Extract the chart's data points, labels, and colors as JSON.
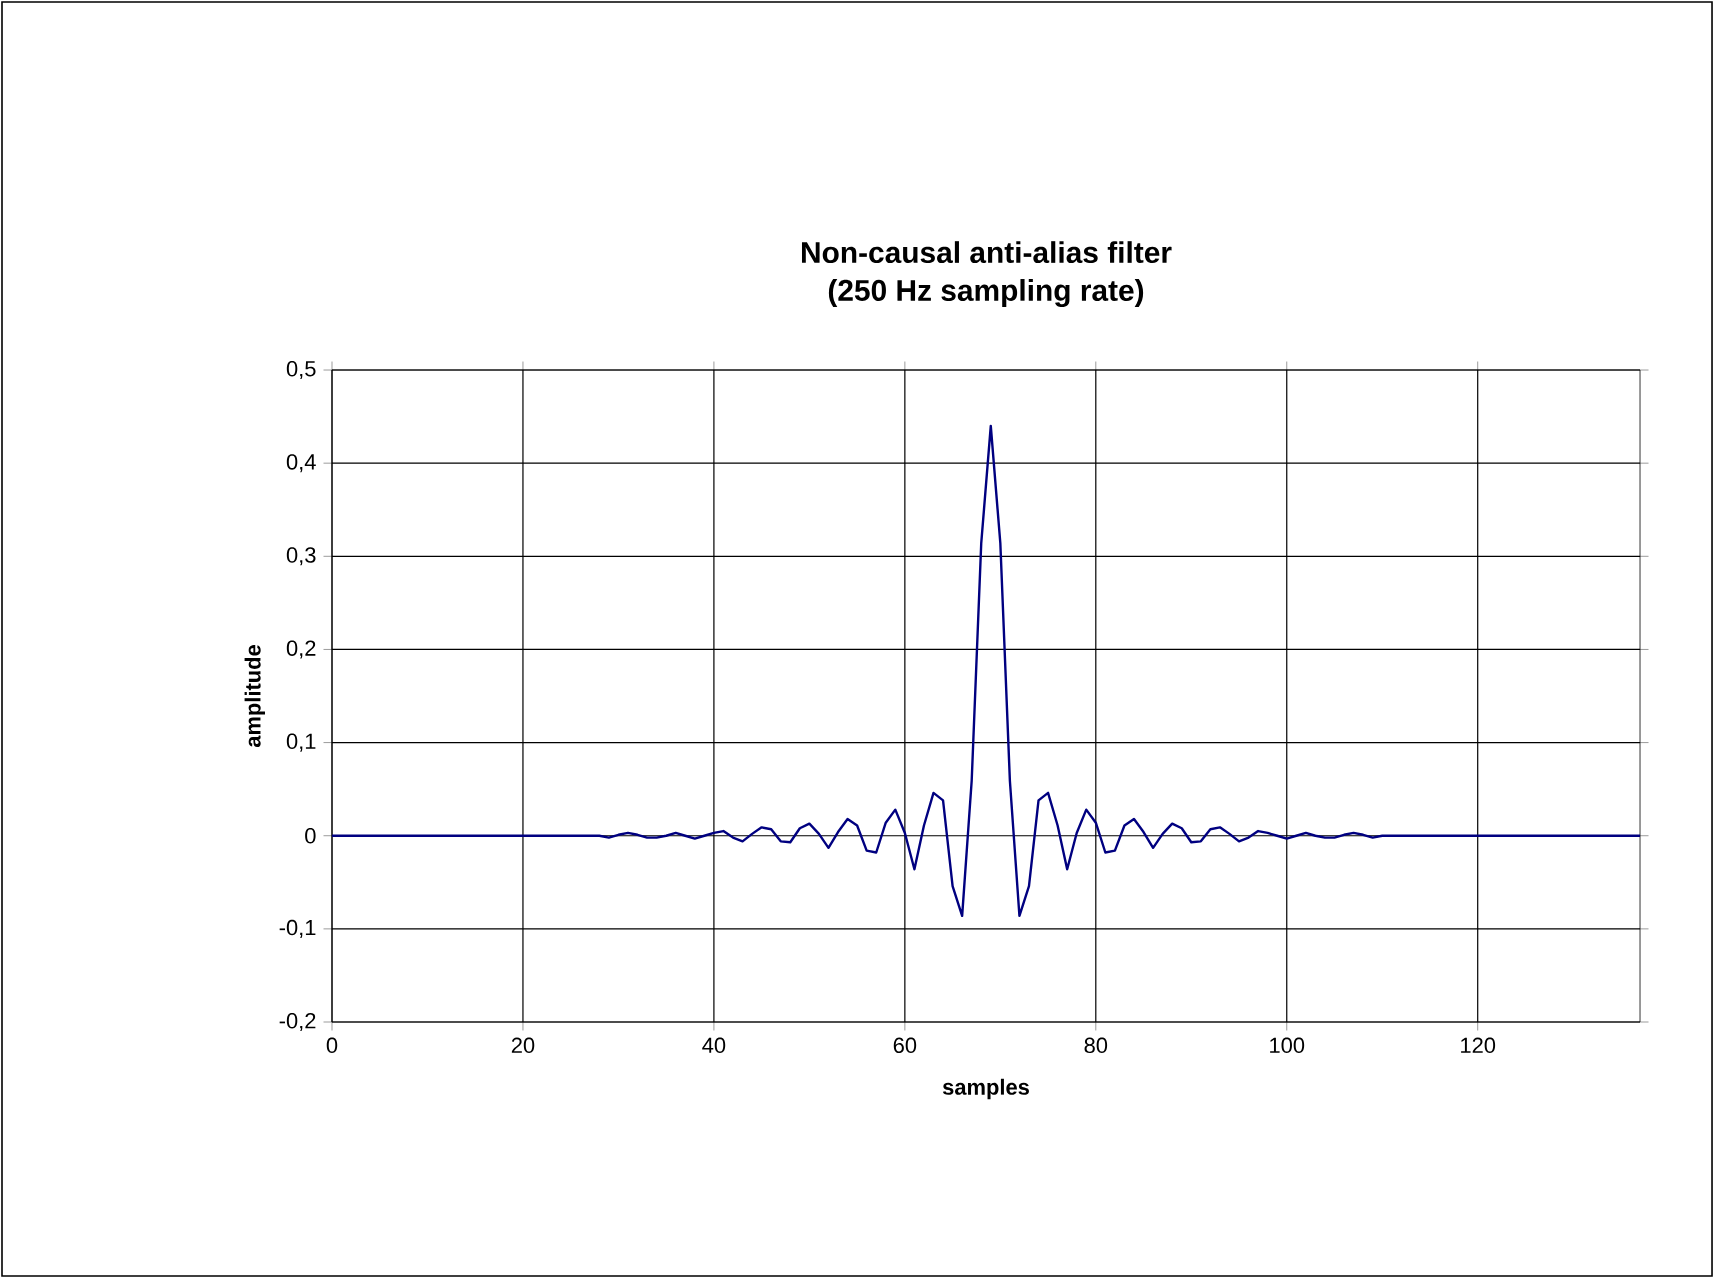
{
  "chart_data": {
    "type": "line",
    "title": "Non-causal anti-alias filter\n(250 Hz sampling rate)",
    "xlabel": "samples",
    "ylabel": "amplitude",
    "x": [
      0,
      28,
      29,
      30,
      31,
      32,
      33,
      34,
      35,
      36,
      37,
      38,
      39,
      40,
      41,
      42,
      43,
      44,
      45,
      46,
      47,
      48,
      49,
      50,
      51,
      52,
      53,
      54,
      55,
      56,
      57,
      58,
      59,
      60,
      61,
      62,
      63,
      64,
      65,
      66,
      67,
      68,
      69,
      70,
      71,
      72,
      73,
      74,
      75,
      76,
      77,
      78,
      79,
      80,
      81,
      82,
      83,
      84,
      85,
      86,
      87,
      88,
      89,
      90,
      91,
      92,
      93,
      94,
      95,
      96,
      97,
      98,
      99,
      100,
      101,
      102,
      103,
      104,
      105,
      106,
      107,
      108,
      109,
      110,
      137
    ],
    "series": [
      {
        "color": "#000080",
        "values": [
          0,
          0,
          -0.002,
          0.001,
          0.003,
          0.001,
          -0.002,
          -0.002,
          0,
          0.003,
          0,
          -0.003,
          0,
          0.003,
          0.005,
          -0.002,
          -0.006,
          0.002,
          0.009,
          0.007,
          -0.006,
          -0.007,
          0.008,
          0.013,
          0.002,
          -0.013,
          0.004,
          0.018,
          0.011,
          -0.016,
          -0.018,
          0.014,
          0.028,
          0.003,
          -0.036,
          0.011,
          0.046,
          0.038,
          -0.054,
          -0.086,
          0.059,
          0.314,
          0.44,
          0.314,
          0.059,
          -0.086,
          -0.054,
          0.038,
          0.046,
          0.011,
          -0.036,
          0.003,
          0.028,
          0.014,
          -0.018,
          -0.016,
          0.011,
          0.018,
          0.004,
          -0.013,
          0.002,
          0.013,
          0.008,
          -0.007,
          -0.006,
          0.007,
          0.009,
          0.002,
          -0.006,
          -0.002,
          0.005,
          0.003,
          0,
          -0.003,
          0,
          0.003,
          0,
          -0.002,
          -0.002,
          0.001,
          0.003,
          0.001,
          -0.002,
          0,
          0
        ]
      }
    ],
    "xlim": [
      0,
      137
    ],
    "xticks": [
      0,
      20,
      40,
      60,
      80,
      100,
      120
    ],
    "ylim": [
      -0.2,
      0.5
    ],
    "yticks": [
      {
        "value": -0.2,
        "label": "-0,2"
      },
      {
        "value": -0.1,
        "label": "-0,1"
      },
      0,
      {
        "value": 0.1,
        "label": "0,1"
      },
      {
        "value": 0.2,
        "label": "0,2"
      },
      {
        "value": 0.3,
        "label": "0,3"
      },
      {
        "value": 0.4,
        "label": "0,4"
      },
      {
        "value": 0.5,
        "label": "0,5"
      }
    ],
    "grid": true,
    "marker": "none",
    "line_style": "solid"
  }
}
